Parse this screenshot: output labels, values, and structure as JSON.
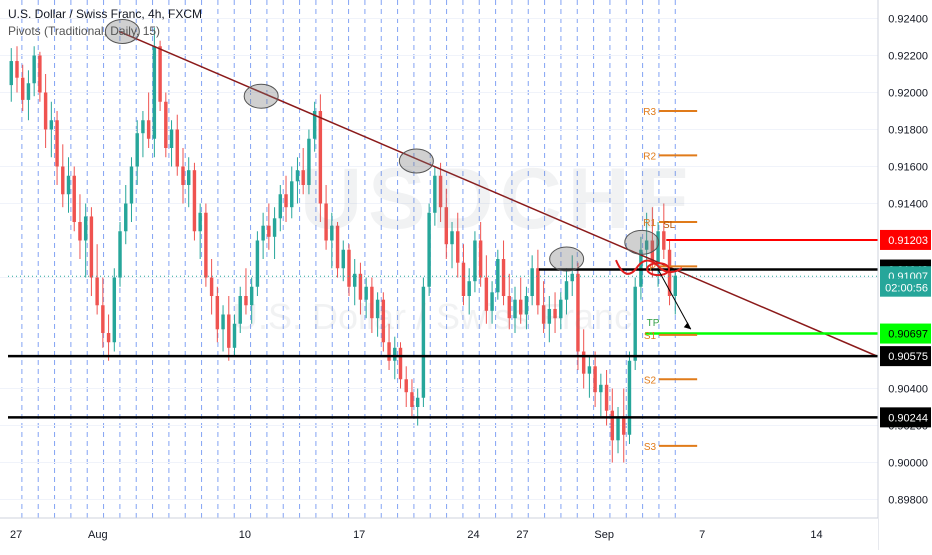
{
  "header": {
    "title": "U.S. Dollar / Swiss Franc, 4h, FXCM",
    "indicator": "Pivots (Traditional, Daily, 15)"
  },
  "watermark": {
    "symbol": "USDCHF",
    "name": "U.S. Dollar / Swiss Franc"
  },
  "chart_data": {
    "type": "candlestick",
    "y_range": [
      0.897,
      0.925
    ],
    "y_ticks": [
      {
        "label": "0.92400",
        "value": 0.924
      },
      {
        "label": "0.92200",
        "value": 0.922
      },
      {
        "label": "0.92000",
        "value": 0.92
      },
      {
        "label": "0.91800",
        "value": 0.918
      },
      {
        "label": "0.91600",
        "value": 0.916
      },
      {
        "label": "0.91400",
        "value": 0.914
      },
      {
        "label": "0.91000",
        "value": 0.91
      },
      {
        "label": "0.90400",
        "value": 0.904
      },
      {
        "label": "0.90200",
        "value": 0.902
      },
      {
        "label": "0.90000",
        "value": 0.9
      },
      {
        "label": "0.89800",
        "value": 0.898
      }
    ],
    "x_ticks": [
      {
        "label": "27",
        "day": 0
      },
      {
        "label": "Aug",
        "day": 5
      },
      {
        "label": "10",
        "day": 14
      },
      {
        "label": "17",
        "day": 21
      },
      {
        "label": "24",
        "day": 28
      },
      {
        "label": "27",
        "day": 31
      },
      {
        "label": "Sep",
        "day": 36
      },
      {
        "label": "7",
        "day": 42
      },
      {
        "label": "14",
        "day": 49
      }
    ],
    "x_range_days": [
      -0.5,
      52.7
    ],
    "price_levels": [
      {
        "label": "0.91203",
        "value": 0.91203,
        "color": "#ff0000",
        "text": "#ffffff",
        "line": "red",
        "from_day": 39.8
      },
      {
        "label": "0.91043",
        "value": 0.91043,
        "color": "#000000",
        "text": "#ffffff",
        "line": "black",
        "from_day": 32.0
      },
      {
        "label": "0.91007",
        "value": 0.91007,
        "color": "#26a69a",
        "text": "#ffffff",
        "line": "dotted",
        "from_day": -0.5
      },
      {
        "label": "0.90697",
        "value": 0.90697,
        "color": "#00ff00",
        "text": "#000000",
        "line": "green",
        "from_day": 38.5
      },
      {
        "label": "0.90575",
        "value": 0.90575,
        "color": "#000000",
        "text": "#ffffff",
        "line": "black",
        "from_day": -0.5
      },
      {
        "label": "0.90244",
        "value": 0.90244,
        "color": "#000000",
        "text": "#ffffff",
        "line": "black",
        "from_day": -0.5
      }
    ],
    "countdown": {
      "label": "02:00:56",
      "value": 0.90945
    },
    "pivots": [
      {
        "label": "R3",
        "value": 0.919
      },
      {
        "label": "R2",
        "value": 0.9166
      },
      {
        "label": "R1",
        "value": 0.913
      },
      {
        "label": "P",
        "value": 0.9106
      },
      {
        "label": "S1",
        "value": 0.9069
      },
      {
        "label": "S2",
        "value": 0.9045
      },
      {
        "label": "S3",
        "value": 0.9009
      }
    ],
    "pivot_day_range": [
      38.5,
      41.2
    ],
    "trendline": {
      "from": {
        "day": 6.3,
        "value": 0.9233
      },
      "to": {
        "day": 52.7,
        "value": 0.90575
      },
      "color": "#8b1a1a"
    },
    "ellipses": [
      {
        "day": 6.5,
        "value": 0.9233
      },
      {
        "day": 15.0,
        "value": 0.9198
      },
      {
        "day": 24.5,
        "value": 0.9163
      },
      {
        "day": 33.7,
        "value": 0.911
      },
      {
        "day": 38.3,
        "value": 0.9119
      }
    ],
    "labels": [
      {
        "text": "SL",
        "day": 39.6,
        "value": 0.9129,
        "color": "#b45309"
      },
      {
        "text": "TP",
        "day": 38.6,
        "value": 0.9076,
        "color": "#2f9e44"
      }
    ],
    "candles": [
      [
        0.9204,
        0.9224,
        0.9195,
        0.9217
      ],
      [
        0.9217,
        0.9225,
        0.92,
        0.9208
      ],
      [
        0.9208,
        0.9215,
        0.919,
        0.9196
      ],
      [
        0.9196,
        0.9212,
        0.9185,
        0.9205
      ],
      [
        0.9205,
        0.9225,
        0.9198,
        0.922
      ],
      [
        0.922,
        0.9222,
        0.9195,
        0.92
      ],
      [
        0.92,
        0.921,
        0.917,
        0.918
      ],
      [
        0.918,
        0.9195,
        0.9165,
        0.9185
      ],
      [
        0.9185,
        0.919,
        0.915,
        0.916
      ],
      [
        0.916,
        0.9172,
        0.9138,
        0.9145
      ],
      [
        0.9145,
        0.9165,
        0.9135,
        0.9155
      ],
      [
        0.9155,
        0.916,
        0.9125,
        0.913
      ],
      [
        0.913,
        0.9145,
        0.911,
        0.912
      ],
      [
        0.912,
        0.914,
        0.91,
        0.9133
      ],
      [
        0.9133,
        0.9138,
        0.909,
        0.91
      ],
      [
        0.91,
        0.9118,
        0.908,
        0.9085
      ],
      [
        0.9085,
        0.91,
        0.9062,
        0.907
      ],
      [
        0.907,
        0.908,
        0.9055,
        0.9065
      ],
      [
        0.9065,
        0.9105,
        0.906,
        0.91
      ],
      [
        0.91,
        0.913,
        0.9095,
        0.9125
      ],
      [
        0.9125,
        0.915,
        0.9118,
        0.914
      ],
      [
        0.914,
        0.9165,
        0.913,
        0.916
      ],
      [
        0.916,
        0.9185,
        0.915,
        0.9178
      ],
      [
        0.9178,
        0.919,
        0.9165,
        0.9185
      ],
      [
        0.9185,
        0.92,
        0.917,
        0.9175
      ],
      [
        0.9175,
        0.9235,
        0.9165,
        0.9225
      ],
      [
        0.9225,
        0.9228,
        0.919,
        0.9195
      ],
      [
        0.9195,
        0.92,
        0.9165,
        0.917
      ],
      [
        0.917,
        0.9185,
        0.916,
        0.918
      ],
      [
        0.918,
        0.9188,
        0.9155,
        0.916
      ],
      [
        0.916,
        0.917,
        0.914,
        0.915
      ],
      [
        0.915,
        0.9165,
        0.9138,
        0.9158
      ],
      [
        0.9158,
        0.9162,
        0.912,
        0.9125
      ],
      [
        0.9125,
        0.914,
        0.911,
        0.9135
      ],
      [
        0.9135,
        0.914,
        0.9095,
        0.91
      ],
      [
        0.91,
        0.911,
        0.908,
        0.909
      ],
      [
        0.909,
        0.9095,
        0.9065,
        0.9072
      ],
      [
        0.9072,
        0.9085,
        0.906,
        0.908
      ],
      [
        0.908,
        0.909,
        0.9055,
        0.9062
      ],
      [
        0.9062,
        0.908,
        0.9058,
        0.9075
      ],
      [
        0.9075,
        0.9095,
        0.907,
        0.909
      ],
      [
        0.909,
        0.9105,
        0.908,
        0.9085
      ],
      [
        0.9085,
        0.91,
        0.9075,
        0.9095
      ],
      [
        0.9095,
        0.9125,
        0.909,
        0.912
      ],
      [
        0.912,
        0.9135,
        0.911,
        0.9128
      ],
      [
        0.9128,
        0.914,
        0.9115,
        0.9122
      ],
      [
        0.9122,
        0.9138,
        0.911,
        0.9132
      ],
      [
        0.9132,
        0.915,
        0.9125,
        0.9145
      ],
      [
        0.9145,
        0.9155,
        0.913,
        0.9138
      ],
      [
        0.9138,
        0.916,
        0.9132,
        0.9152
      ],
      [
        0.9152,
        0.9165,
        0.914,
        0.9158
      ],
      [
        0.9158,
        0.917,
        0.9145,
        0.915
      ],
      [
        0.915,
        0.918,
        0.9145,
        0.9175
      ],
      [
        0.9175,
        0.9195,
        0.9168,
        0.919
      ],
      [
        0.919,
        0.9199,
        0.913,
        0.914
      ],
      [
        0.914,
        0.915,
        0.9115,
        0.912
      ],
      [
        0.912,
        0.9135,
        0.9105,
        0.9128
      ],
      [
        0.9128,
        0.913,
        0.91,
        0.9105
      ],
      [
        0.9105,
        0.912,
        0.9098,
        0.9115
      ],
      [
        0.9115,
        0.9118,
        0.909,
        0.9095
      ],
      [
        0.9095,
        0.911,
        0.9085,
        0.9102
      ],
      [
        0.9102,
        0.9108,
        0.908,
        0.9088
      ],
      [
        0.9088,
        0.91,
        0.9078,
        0.9095
      ],
      [
        0.9095,
        0.91,
        0.907,
        0.9078
      ],
      [
        0.9078,
        0.9092,
        0.9068,
        0.9088
      ],
      [
        0.9088,
        0.9092,
        0.906,
        0.9065
      ],
      [
        0.9065,
        0.9075,
        0.905,
        0.9055
      ],
      [
        0.9055,
        0.9068,
        0.9045,
        0.9062
      ],
      [
        0.9062,
        0.9065,
        0.904,
        0.9045
      ],
      [
        0.9045,
        0.9052,
        0.903,
        0.9038
      ],
      [
        0.9038,
        0.9045,
        0.9025,
        0.903
      ],
      [
        0.903,
        0.904,
        0.902,
        0.9035
      ],
      [
        0.9035,
        0.91,
        0.903,
        0.9095
      ],
      [
        0.9095,
        0.914,
        0.909,
        0.9135
      ],
      [
        0.9135,
        0.916,
        0.9128,
        0.9155
      ],
      [
        0.9155,
        0.9162,
        0.913,
        0.9138
      ],
      [
        0.9138,
        0.9148,
        0.911,
        0.9118
      ],
      [
        0.9118,
        0.913,
        0.9105,
        0.9125
      ],
      [
        0.9125,
        0.9135,
        0.91,
        0.9108
      ],
      [
        0.9108,
        0.9118,
        0.9085,
        0.909
      ],
      [
        0.909,
        0.9105,
        0.908,
        0.9098
      ],
      [
        0.9098,
        0.9125,
        0.9092,
        0.912
      ],
      [
        0.912,
        0.913,
        0.9095,
        0.91
      ],
      [
        0.91,
        0.9112,
        0.9075,
        0.9082
      ],
      [
        0.9082,
        0.9098,
        0.9075,
        0.9092
      ],
      [
        0.9092,
        0.9115,
        0.9088,
        0.911
      ],
      [
        0.911,
        0.912,
        0.9085,
        0.909
      ],
      [
        0.909,
        0.9102,
        0.9072,
        0.9078
      ],
      [
        0.9078,
        0.9095,
        0.907,
        0.9088
      ],
      [
        0.9088,
        0.91,
        0.9075,
        0.908
      ],
      [
        0.908,
        0.9095,
        0.9072,
        0.909
      ],
      [
        0.909,
        0.9112,
        0.9085,
        0.9105
      ],
      [
        0.9105,
        0.9115,
        0.908,
        0.9085
      ],
      [
        0.9085,
        0.9098,
        0.907,
        0.9075
      ],
      [
        0.9075,
        0.909,
        0.9065,
        0.9083
      ],
      [
        0.9083,
        0.9092,
        0.907,
        0.9078
      ],
      [
        0.9078,
        0.9092,
        0.9072,
        0.9088
      ],
      [
        0.9088,
        0.9105,
        0.908,
        0.9098
      ],
      [
        0.9098,
        0.9112,
        0.909,
        0.9102
      ],
      [
        0.9102,
        0.9108,
        0.905,
        0.906
      ],
      [
        0.906,
        0.9072,
        0.904,
        0.9048
      ],
      [
        0.9048,
        0.9058,
        0.9035,
        0.9052
      ],
      [
        0.9052,
        0.906,
        0.903,
        0.9038
      ],
      [
        0.9038,
        0.9048,
        0.9025,
        0.9042
      ],
      [
        0.9042,
        0.905,
        0.902,
        0.9028
      ],
      [
        0.9028,
        0.904,
        0.9,
        0.9012
      ],
      [
        0.9012,
        0.903,
        0.9005,
        0.9025
      ],
      [
        0.9025,
        0.904,
        0.9,
        0.9015
      ],
      [
        0.9015,
        0.906,
        0.901,
        0.9055
      ],
      [
        0.9055,
        0.91,
        0.905,
        0.9095
      ],
      [
        0.9095,
        0.9122,
        0.9088,
        0.9115
      ],
      [
        0.9115,
        0.9135,
        0.9105,
        0.912
      ],
      [
        0.912,
        0.9138,
        0.91,
        0.9108
      ],
      [
        0.9108,
        0.913,
        0.9095,
        0.9125
      ],
      [
        0.9125,
        0.914,
        0.911,
        0.9115
      ],
      [
        0.9115,
        0.912,
        0.9085,
        0.909
      ],
      [
        0.909,
        0.9105,
        0.908,
        0.9101
      ]
    ]
  }
}
